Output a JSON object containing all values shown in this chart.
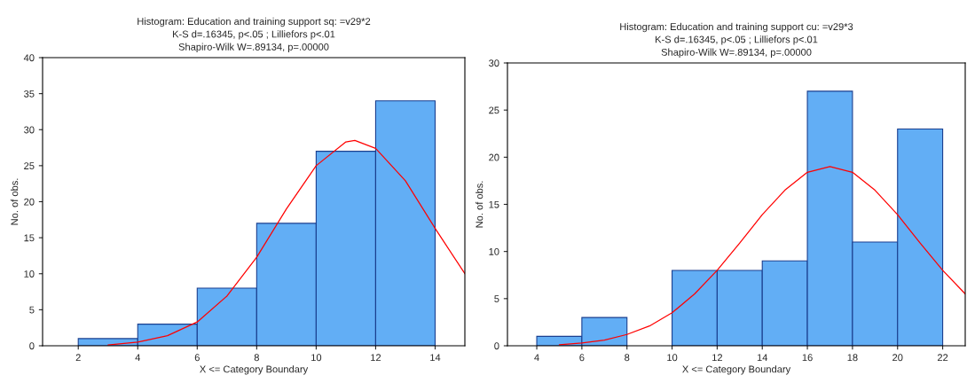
{
  "chart_data": [
    {
      "type": "histogram",
      "title": "Histogram: Education and training support sq: =v29*2\nK-S d=.16345, p<.05 ; Lilliefors p<.01\nShapiro-Wilk W=.89134, p=.00000",
      "xlabel": "X <= Category Boundary",
      "ylabel": "No. of obs.",
      "bins": [
        2,
        4,
        6,
        8,
        10,
        12,
        14
      ],
      "values": [
        1,
        3,
        8,
        17,
        27,
        34
      ],
      "color": "#62aef5",
      "series": [
        {
          "type": "line",
          "color": "#ff0000",
          "x": [
            3,
            4,
            5,
            6,
            7,
            8,
            9,
            10,
            11,
            11.3,
            12,
            13,
            14,
            15
          ],
          "values": [
            0.1,
            0.5,
            1.4,
            3.3,
            6.9,
            12.3,
            19.0,
            25.0,
            28.3,
            28.5,
            27.4,
            22.9,
            16.3,
            10.0
          ]
        }
      ],
      "xlim": [
        0.8,
        15
      ],
      "xticks": [
        2,
        4,
        6,
        8,
        10,
        12,
        14
      ],
      "ylim": [
        0,
        40
      ],
      "yticks": [
        0,
        5,
        10,
        15,
        20,
        25,
        30,
        35,
        40
      ],
      "grid": false
    },
    {
      "type": "histogram",
      "title": "Histogram: Education and training support cu: =v29*3\nK-S d=.16345, p<.05 ; Lilliefors p<.01\nShapiro-Wilk W=.89134, p=.00000",
      "xlabel": "X <= Category Boundary",
      "ylabel": "No. of obs.",
      "bins": [
        4,
        6,
        8,
        10,
        12,
        14,
        16,
        18,
        20,
        22
      ],
      "values": [
        1,
        3,
        0,
        8,
        8,
        9,
        27,
        11,
        23
      ],
      "color": "#62aef5",
      "series": [
        {
          "type": "line",
          "color": "#ff0000",
          "x": [
            5,
            6,
            7,
            8,
            9,
            10,
            11,
            12,
            13,
            14,
            15,
            16,
            17,
            18,
            19,
            20,
            21,
            22,
            23
          ],
          "values": [
            0.1,
            0.3,
            0.6,
            1.2,
            2.1,
            3.5,
            5.5,
            8.0,
            10.9,
            13.9,
            16.5,
            18.4,
            19.0,
            18.4,
            16.5,
            13.9,
            10.9,
            8.0,
            5.5
          ]
        }
      ],
      "xlim": [
        2.7,
        23
      ],
      "xticks": [
        4,
        6,
        8,
        10,
        12,
        14,
        16,
        18,
        20,
        22
      ],
      "ylim": [
        0,
        30
      ],
      "yticks": [
        0,
        5,
        10,
        15,
        20,
        25,
        30
      ],
      "grid": false
    }
  ]
}
